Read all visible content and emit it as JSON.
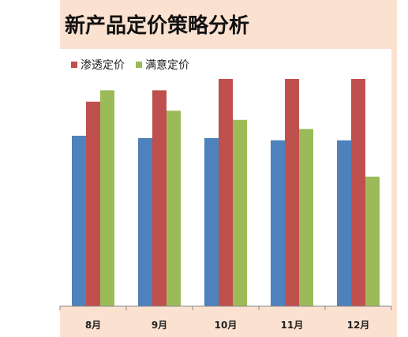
{
  "chart_data": {
    "type": "bar",
    "title": "新产品定价策略分析",
    "categories": [
      "8月",
      "9月",
      "10月",
      "11月",
      "12月"
    ],
    "series": [
      {
        "name": "",
        "color": "#4f81bd",
        "values": [
          7.5,
          7.4,
          7.4,
          7.3,
          7.3
        ]
      },
      {
        "name": "渗透定价",
        "color": "#c0504d",
        "values": [
          9.0,
          9.5,
          10.0,
          10.0,
          10.0
        ]
      },
      {
        "name": "满意定价",
        "color": "#9bbb59",
        "values": [
          9.5,
          8.6,
          8.2,
          7.8,
          5.7
        ]
      }
    ],
    "ylim": [
      0,
      10
    ],
    "legend_position": "top-left",
    "grid": false
  }
}
